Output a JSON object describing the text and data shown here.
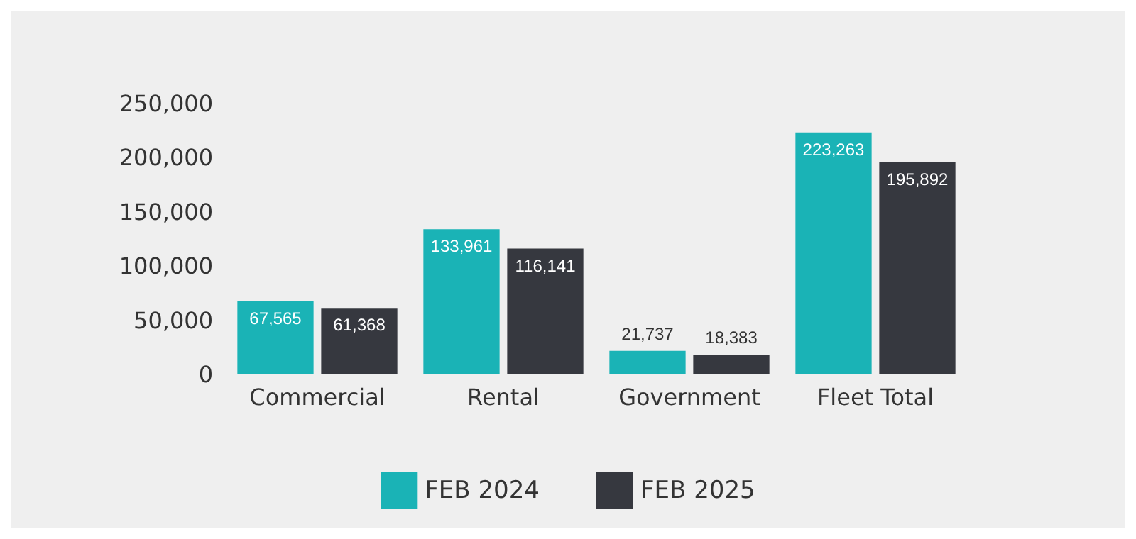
{
  "chart_data": {
    "type": "bar",
    "categories": [
      "Commercial",
      "Rental",
      "Government",
      "Fleet Total"
    ],
    "series": [
      {
        "name": "FEB 2024",
        "color": "#1ab3b6",
        "values": [
          67565,
          133961,
          21737,
          223263
        ],
        "value_labels": [
          "67,565",
          "133,961",
          "21,737",
          "223,263"
        ]
      },
      {
        "name": "FEB 2025",
        "color": "#36383f",
        "values": [
          61368,
          116141,
          18383,
          195892
        ],
        "value_labels": [
          "61,368",
          "116,141",
          "18,383",
          "195,892"
        ]
      }
    ],
    "ylim": [
      0,
      250000
    ],
    "yticks": [
      0,
      {
        "value": 50000,
        "label": "50,000"
      },
      {
        "value": 100000,
        "label": "100,000"
      },
      {
        "value": 150000,
        "label": "150,000"
      },
      {
        "value": 200000,
        "label": "200,000"
      },
      {
        "value": 250000,
        "label": "250,000"
      }
    ],
    "grid": false,
    "legend": "bottom"
  }
}
